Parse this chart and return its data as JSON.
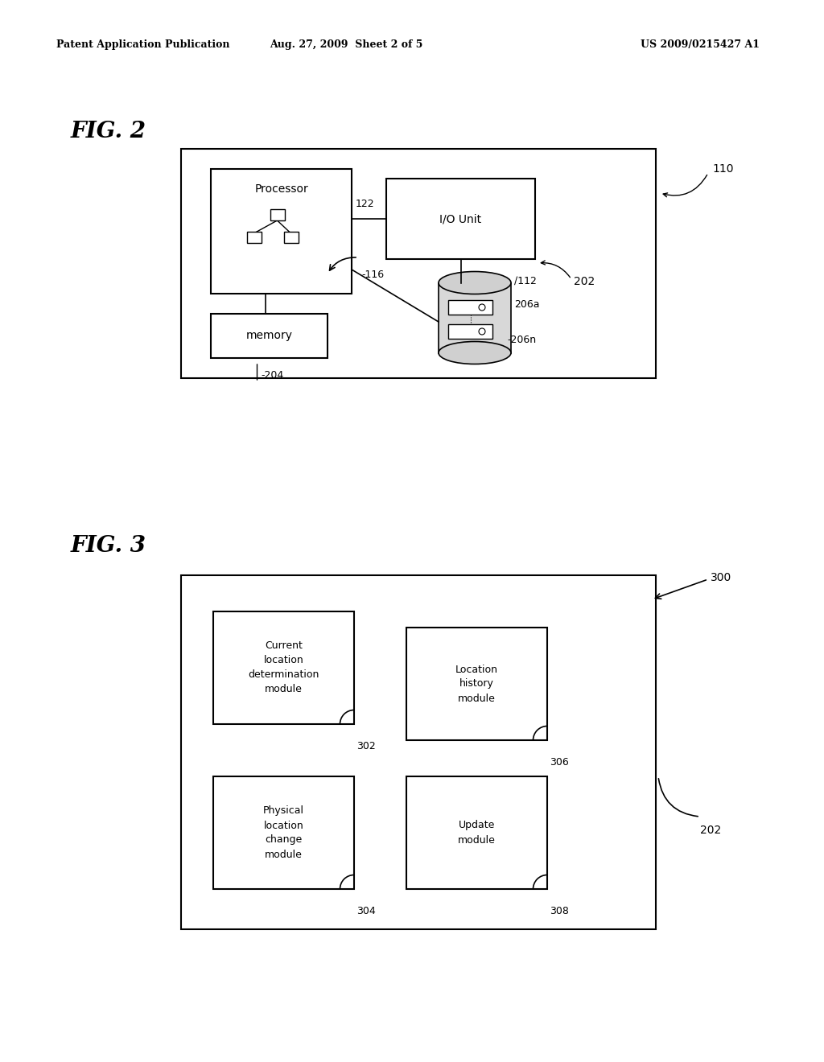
{
  "bg_color": "#ffffff",
  "header_left": "Patent Application Publication",
  "header_mid": "Aug. 27, 2009  Sheet 2 of 5",
  "header_right": "US 2009/0215427 A1",
  "fig2_label": "FIG. 2",
  "fig3_label": "FIG. 3",
  "label_110": "110",
  "label_202_fig2": "202",
  "label_122": "122",
  "label_116": "116",
  "label_112": "112",
  "label_206a": "206a",
  "label_206n": "206n",
  "label_204": "204",
  "label_300": "300",
  "label_202_fig3": "202",
  "label_302": "302",
  "label_304": "304",
  "label_306": "306",
  "label_308": "308"
}
